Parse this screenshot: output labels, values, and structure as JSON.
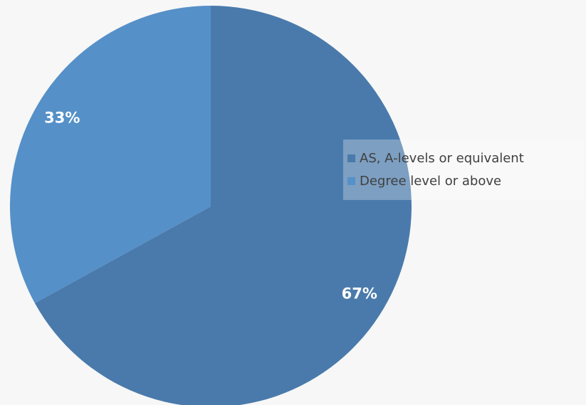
{
  "chart_data": {
    "type": "pie",
    "categories": [
      "AS, A-levels or equivalent",
      "Degree level or above"
    ],
    "values": [
      67,
      33
    ],
    "data_labels": [
      "67%",
      "33%"
    ],
    "colors": [
      "#4a7aab",
      "#5590c8"
    ],
    "legend_position": "right",
    "title": ""
  },
  "legend": {
    "items": [
      {
        "label": "AS, A-levels or equivalent",
        "color": "#4a7aab"
      },
      {
        "label": "Degree level or above",
        "color": "#5590c8"
      }
    ]
  }
}
